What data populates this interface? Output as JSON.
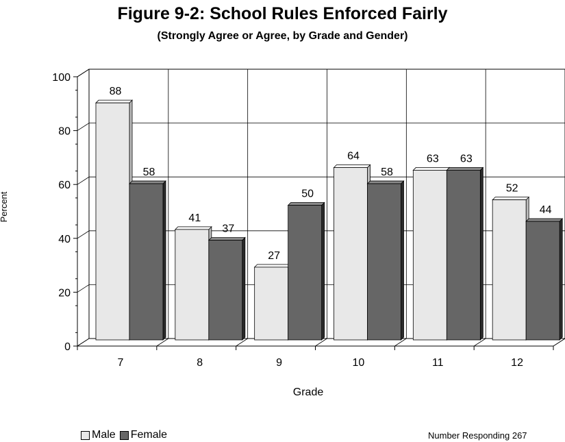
{
  "chart_data": {
    "type": "bar",
    "title": "Figure 9-2: School Rules Enforced Fairly",
    "subtitle": "(Strongly Agree or Agree, by Grade and Gender)",
    "xlabel": "Grade",
    "ylabel": "Percent",
    "categories": [
      "7",
      "8",
      "9",
      "10",
      "11",
      "12"
    ],
    "series": [
      {
        "name": "Male",
        "values": [
          88,
          41,
          27,
          64,
          63,
          52
        ],
        "color": "#e8e8e8"
      },
      {
        "name": "Female",
        "values": [
          58,
          37,
          50,
          58,
          63,
          44
        ],
        "color": "#666666"
      }
    ],
    "ylim": [
      0,
      100
    ],
    "yticks": [
      0,
      20,
      40,
      60,
      80,
      100
    ],
    "grid": true,
    "legend_position": "bottom-left",
    "footnote": "Number Responding 267"
  }
}
